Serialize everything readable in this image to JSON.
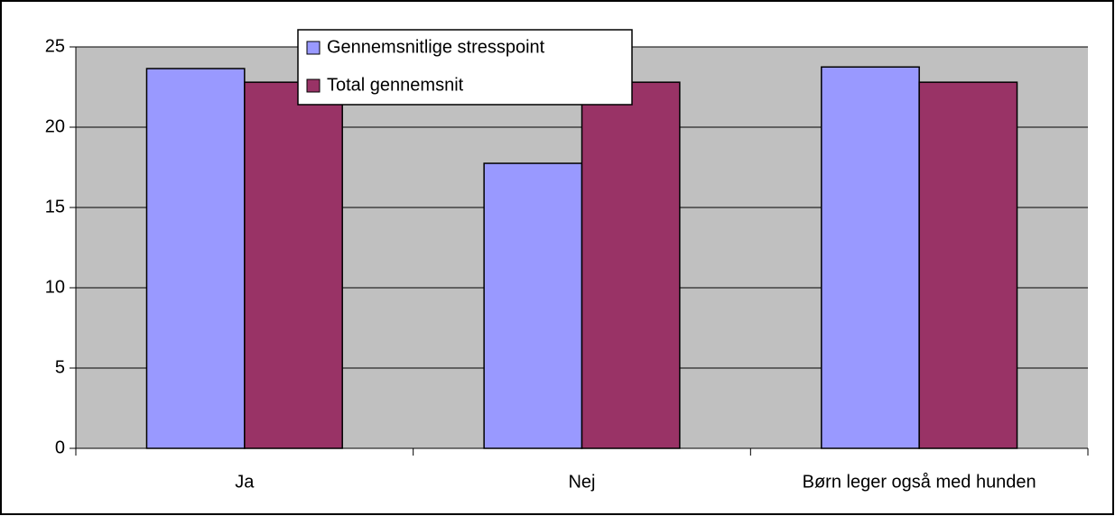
{
  "chart_data": {
    "type": "bar",
    "categories": [
      "Ja",
      "Nej",
      "Børn leger også med hunden"
    ],
    "series": [
      {
        "name": "Gennemsnitlige stresspoint",
        "color": "#9999ff",
        "values": [
          23.65,
          17.75,
          23.75
        ]
      },
      {
        "name": "Total gennemsnit",
        "color": "#993366",
        "values": [
          22.8,
          22.8,
          22.8
        ]
      }
    ],
    "ylim": [
      0,
      25
    ],
    "yticks": [
      0,
      5,
      10,
      15,
      20,
      25
    ],
    "grid": true,
    "legend": "top"
  }
}
